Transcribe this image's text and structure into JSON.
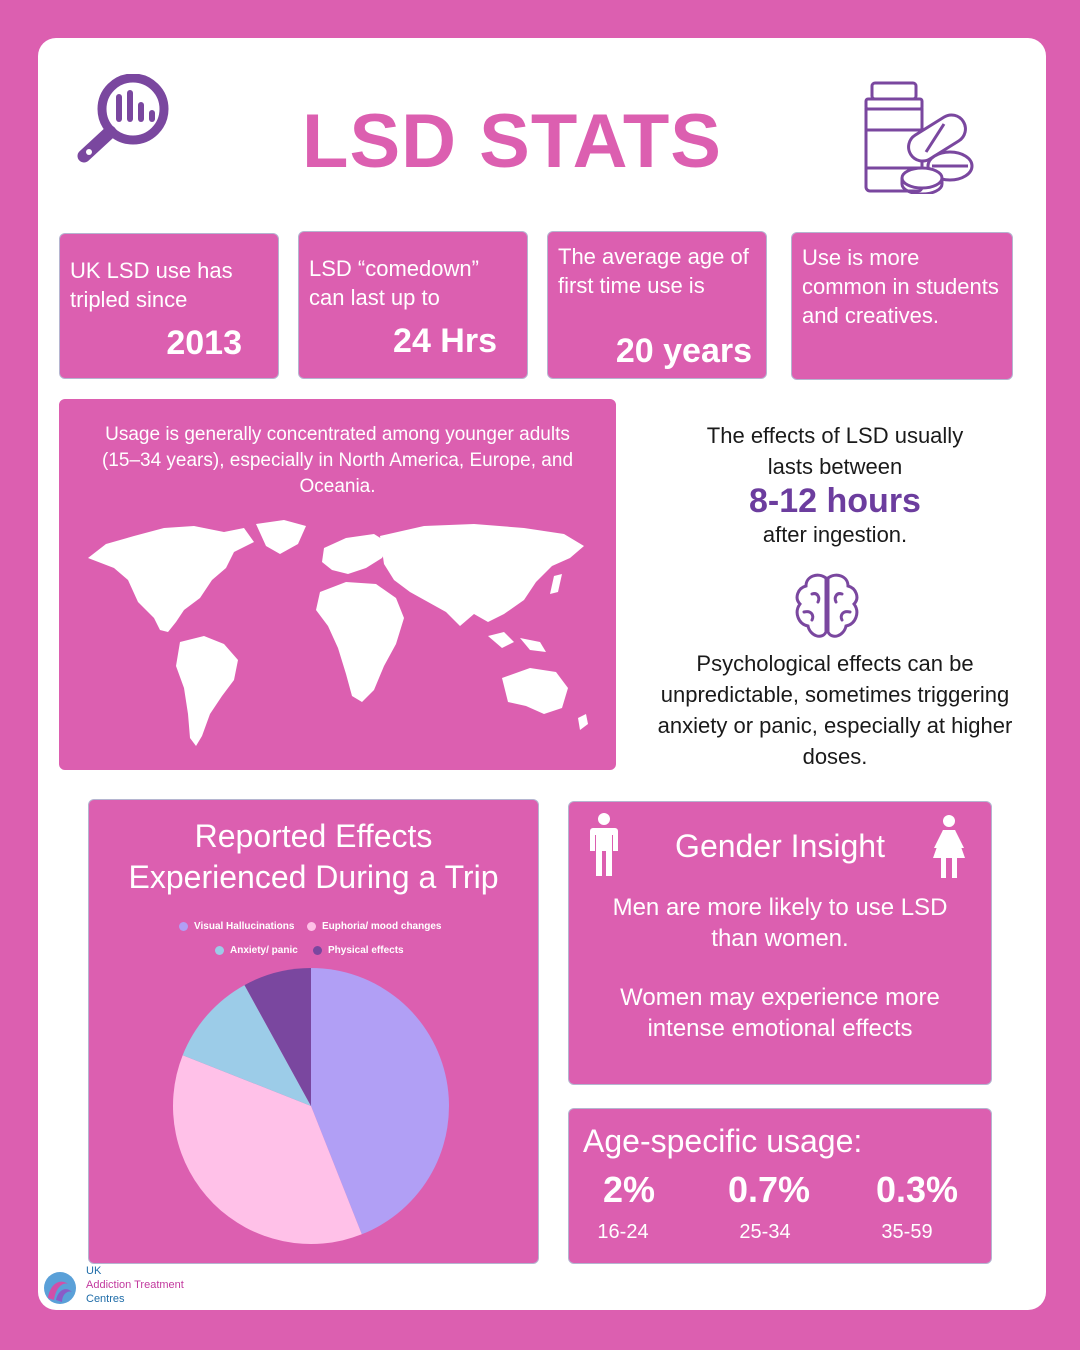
{
  "header": {
    "title": "LSD STATS",
    "left_icon": "magnifier-chart-icon",
    "right_icon": "pill-bottle-icon"
  },
  "stats": [
    {
      "text": "UK LSD use has tripled since",
      "value": "2013"
    },
    {
      "text": "LSD “comedown” can last up to",
      "value": "24 Hrs"
    },
    {
      "text": "The average age of first time use is",
      "value": "20 years"
    },
    {
      "text": "Use is more common in students and creatives.",
      "value": ""
    }
  ],
  "map_box": {
    "text": "Usage is generally concentrated among younger adults (15–34 years), especially in North America, Europe, and Oceania.",
    "icon": "world-map-icon"
  },
  "duration": {
    "line1": "The effects of LSD usually lasts between",
    "value": "8-12 hours",
    "line2": "after ingestion."
  },
  "psych": {
    "icon": "brain-icon",
    "text": "Psychological effects can be unpredictable, sometimes triggering anxiety or panic, especially at higher doses."
  },
  "chart_data": {
    "type": "pie",
    "title": "Reported Effects Experienced During a Trip",
    "categories": [
      "Visual Hallucinations",
      "Euphoria/ mood changes",
      "Anxiety/ panic",
      "Physical effects"
    ],
    "values": [
      44,
      37,
      11,
      8
    ],
    "colors": [
      "#b19ff5",
      "#ffc1e8",
      "#9ccce8",
      "#7a479f"
    ],
    "legend_position": "top"
  },
  "gender": {
    "title": "Gender Insight",
    "men_text": "Men are more likely to use LSD than women.",
    "women_text": "Women may experience more intense emotional effects",
    "male_icon": "male-figure-icon",
    "female_icon": "female-figure-icon"
  },
  "age": {
    "title": "Age-specific usage:",
    "groups": [
      {
        "pct": "2%",
        "label": "16-24"
      },
      {
        "pct": "0.7%",
        "label": "25-34"
      },
      {
        "pct": "0.3%",
        "label": "35-59"
      }
    ]
  },
  "logo": {
    "line1": "UK",
    "line2": "Addiction Treatment",
    "line3": "Centres",
    "color_a": "#1e6ca8",
    "color_b": "#c2399e"
  }
}
